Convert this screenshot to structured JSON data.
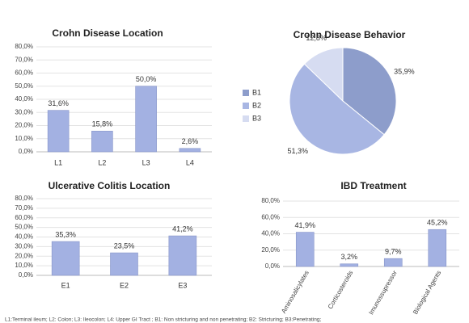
{
  "chart_data": [
    {
      "type": "bar",
      "title": "Crohn Disease Location",
      "categories": [
        "L1",
        "L2",
        "L3",
        "L4"
      ],
      "values": [
        31.6,
        15.8,
        50.0,
        2.6
      ],
      "value_labels": [
        "31,6%",
        "15,8%",
        "50,0%",
        "2,6%"
      ],
      "color": "#a3b1e2",
      "ylim": [
        0,
        80
      ],
      "yticks": [
        {
          "value": 0,
          "label": "0,0%"
        },
        {
          "value": 10,
          "label": "10,0%"
        },
        {
          "value": 20,
          "label": "20,0%"
        },
        {
          "value": 30,
          "label": "30,0%"
        },
        {
          "value": 40,
          "label": "40,0%"
        },
        {
          "value": 50,
          "label": "50,0%"
        },
        {
          "value": 60,
          "label": "60,0%"
        },
        {
          "value": 70,
          "label": "70,0%"
        },
        {
          "value": 80,
          "label": "80,0%"
        }
      ],
      "grid": true
    },
    {
      "type": "pie",
      "title": "Crohn Disease Behavior",
      "categories": [
        "B1",
        "B2",
        "B3"
      ],
      "values": [
        35.9,
        51.3,
        12.8
      ],
      "value_labels": [
        "35,9%",
        "51,3%",
        "12,8%"
      ],
      "colors": [
        "#8d9dcb",
        "#a8b6e3",
        "#d6dcf1"
      ],
      "legend": "left"
    },
    {
      "type": "bar",
      "title": "Ulcerative Colitis Location",
      "categories": [
        "E1",
        "E2",
        "E3"
      ],
      "values": [
        35.3,
        23.5,
        41.2
      ],
      "value_labels": [
        "35,3%",
        "23,5%",
        "41,2%"
      ],
      "color": "#a3b1e2",
      "ylim": [
        0,
        80
      ],
      "yticks": [
        {
          "value": 0,
          "label": "0,0%"
        },
        {
          "value": 10,
          "label": "10,0%"
        },
        {
          "value": 20,
          "label": "20,0%"
        },
        {
          "value": 30,
          "label": "30,0%"
        },
        {
          "value": 40,
          "label": "40,0%"
        },
        {
          "value": 50,
          "label": "50,0%"
        },
        {
          "value": 60,
          "label": "60,0%"
        },
        {
          "value": 70,
          "label": "70,0%"
        },
        {
          "value": 80,
          "label": "80,0%"
        }
      ],
      "grid": true
    },
    {
      "type": "bar",
      "title": "IBD Treatment",
      "categories": [
        "Aminosalicylates",
        "Corticosteroids",
        "Imunossupressor",
        "Biological Agents"
      ],
      "values": [
        41.9,
        3.2,
        9.7,
        45.2
      ],
      "value_labels": [
        "41,9%",
        "3,2%",
        "9,7%",
        "45,2%"
      ],
      "color": "#a3b1e2",
      "ylim": [
        0,
        80
      ],
      "yticks": [
        {
          "value": 0,
          "label": "0,0%"
        },
        {
          "value": 20,
          "label": "20,0%"
        },
        {
          "value": 40,
          "label": "40,0%"
        },
        {
          "value": 60,
          "label": "60,0%"
        },
        {
          "value": 80,
          "label": "80,0%"
        }
      ],
      "grid": true
    }
  ],
  "footnote": "L1:Terminal ileum; L2: Colon; L3: Ileocolon; L4: Upper GI Tract ; B1: Non stricturing and non penetrating; B2: Stricturing; B3:Penetrating;"
}
